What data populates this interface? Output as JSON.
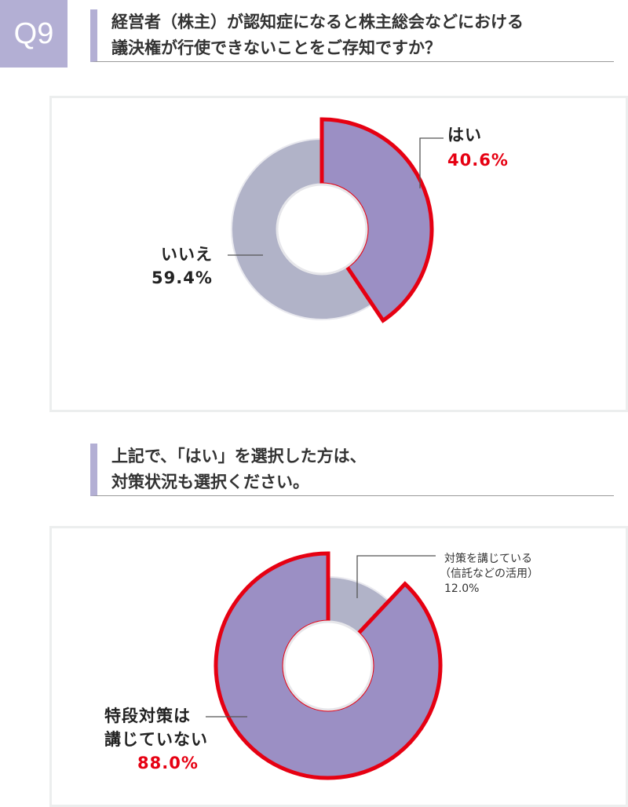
{
  "q1": {
    "badge": "Q9",
    "question_line1": "経営者（株主）が認知症になると株主総会などにおける",
    "question_line2": "議決権が行使できないことをご存知ですか？"
  },
  "q2": {
    "question_line1": "上記で、「はい」を選択した方は、",
    "question_line2": "対策状況も選択ください。"
  },
  "colors": {
    "highlight": "#9b8fc4",
    "other": "#b1b3c8",
    "border": "#e60012"
  },
  "chart_data": [
    {
      "type": "pie",
      "title": "経営者（株主）が認知症になると株主総会などにおける議決権が行使できないことをご存知ですか？",
      "slices": [
        {
          "label": "はい",
          "value": 40.6,
          "value_label": "40.6%",
          "highlight": true
        },
        {
          "label": "いいえ",
          "value": 59.4,
          "value_label": "59.4%",
          "highlight": false
        }
      ]
    },
    {
      "type": "pie",
      "title": "上記で、「はい」を選択した方は、対策状況も選択ください。",
      "slices": [
        {
          "label": "対策を講じている",
          "label2": "（信託などの活用）",
          "value": 12.0,
          "value_label": "12.0%",
          "highlight": false
        },
        {
          "label": "特段対策は",
          "label2": "講じていない",
          "value": 88.0,
          "value_label": "88.0%",
          "highlight": true
        }
      ]
    }
  ]
}
